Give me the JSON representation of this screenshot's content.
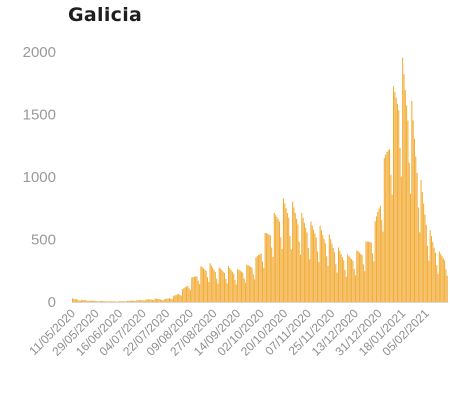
{
  "chart_data": {
    "type": "bar",
    "title": "Galicia",
    "xlabel": "",
    "ylabel": "",
    "ylim": [
      0,
      2000
    ],
    "yticks": [
      0,
      500,
      1000,
      1500,
      2000
    ],
    "grid": false,
    "legend": "none",
    "bar_color": "#f2ac36",
    "x_start": "11/05/2020",
    "x_end": "21/02/2021",
    "xtick_labels": [
      "11/05/2020",
      "29/05/2020",
      "16/06/2020",
      "04/07/2020",
      "22/07/2020",
      "09/08/2020",
      "27/08/2020",
      "14/09/2020",
      "02/10/2020",
      "20/10/2020",
      "07/11/2020",
      "25/11/2020",
      "13/12/2020",
      "31/12/2020",
      "18/01/2021",
      "05/02/2021"
    ],
    "weekly": {
      "week_starts": [
        "11/05/2020",
        "18/05/2020",
        "25/05/2020",
        "01/06/2020",
        "08/06/2020",
        "15/06/2020",
        "22/06/2020",
        "29/06/2020",
        "06/07/2020",
        "13/07/2020",
        "20/07/2020",
        "27/07/2020",
        "03/08/2020",
        "10/08/2020",
        "17/08/2020",
        "24/08/2020",
        "31/08/2020",
        "07/09/2020",
        "14/09/2020",
        "21/09/2020",
        "28/09/2020",
        "05/10/2020",
        "12/10/2020",
        "19/10/2020",
        "26/10/2020",
        "02/11/2020",
        "09/11/2020",
        "16/11/2020",
        "23/11/2020",
        "30/11/2020",
        "07/12/2020",
        "14/12/2020",
        "21/12/2020",
        "28/12/2020",
        "04/01/2021",
        "11/01/2021",
        "18/01/2021",
        "25/01/2021",
        "01/02/2021",
        "08/02/2021",
        "15/02/2021"
      ],
      "values": [
        25,
        15,
        10,
        8,
        6,
        5,
        8,
        12,
        18,
        25,
        20,
        40,
        90,
        170,
        250,
        270,
        240,
        250,
        230,
        260,
        310,
        480,
        620,
        720,
        700,
        620,
        560,
        530,
        470,
        380,
        330,
        360,
        420,
        560,
        1000,
        1500,
        1700,
        1400,
        850,
        500,
        350
      ],
      "weekday_factors": [
        1.15,
        1.1,
        1.05,
        1.0,
        0.95,
        0.75,
        0.6
      ]
    }
  }
}
